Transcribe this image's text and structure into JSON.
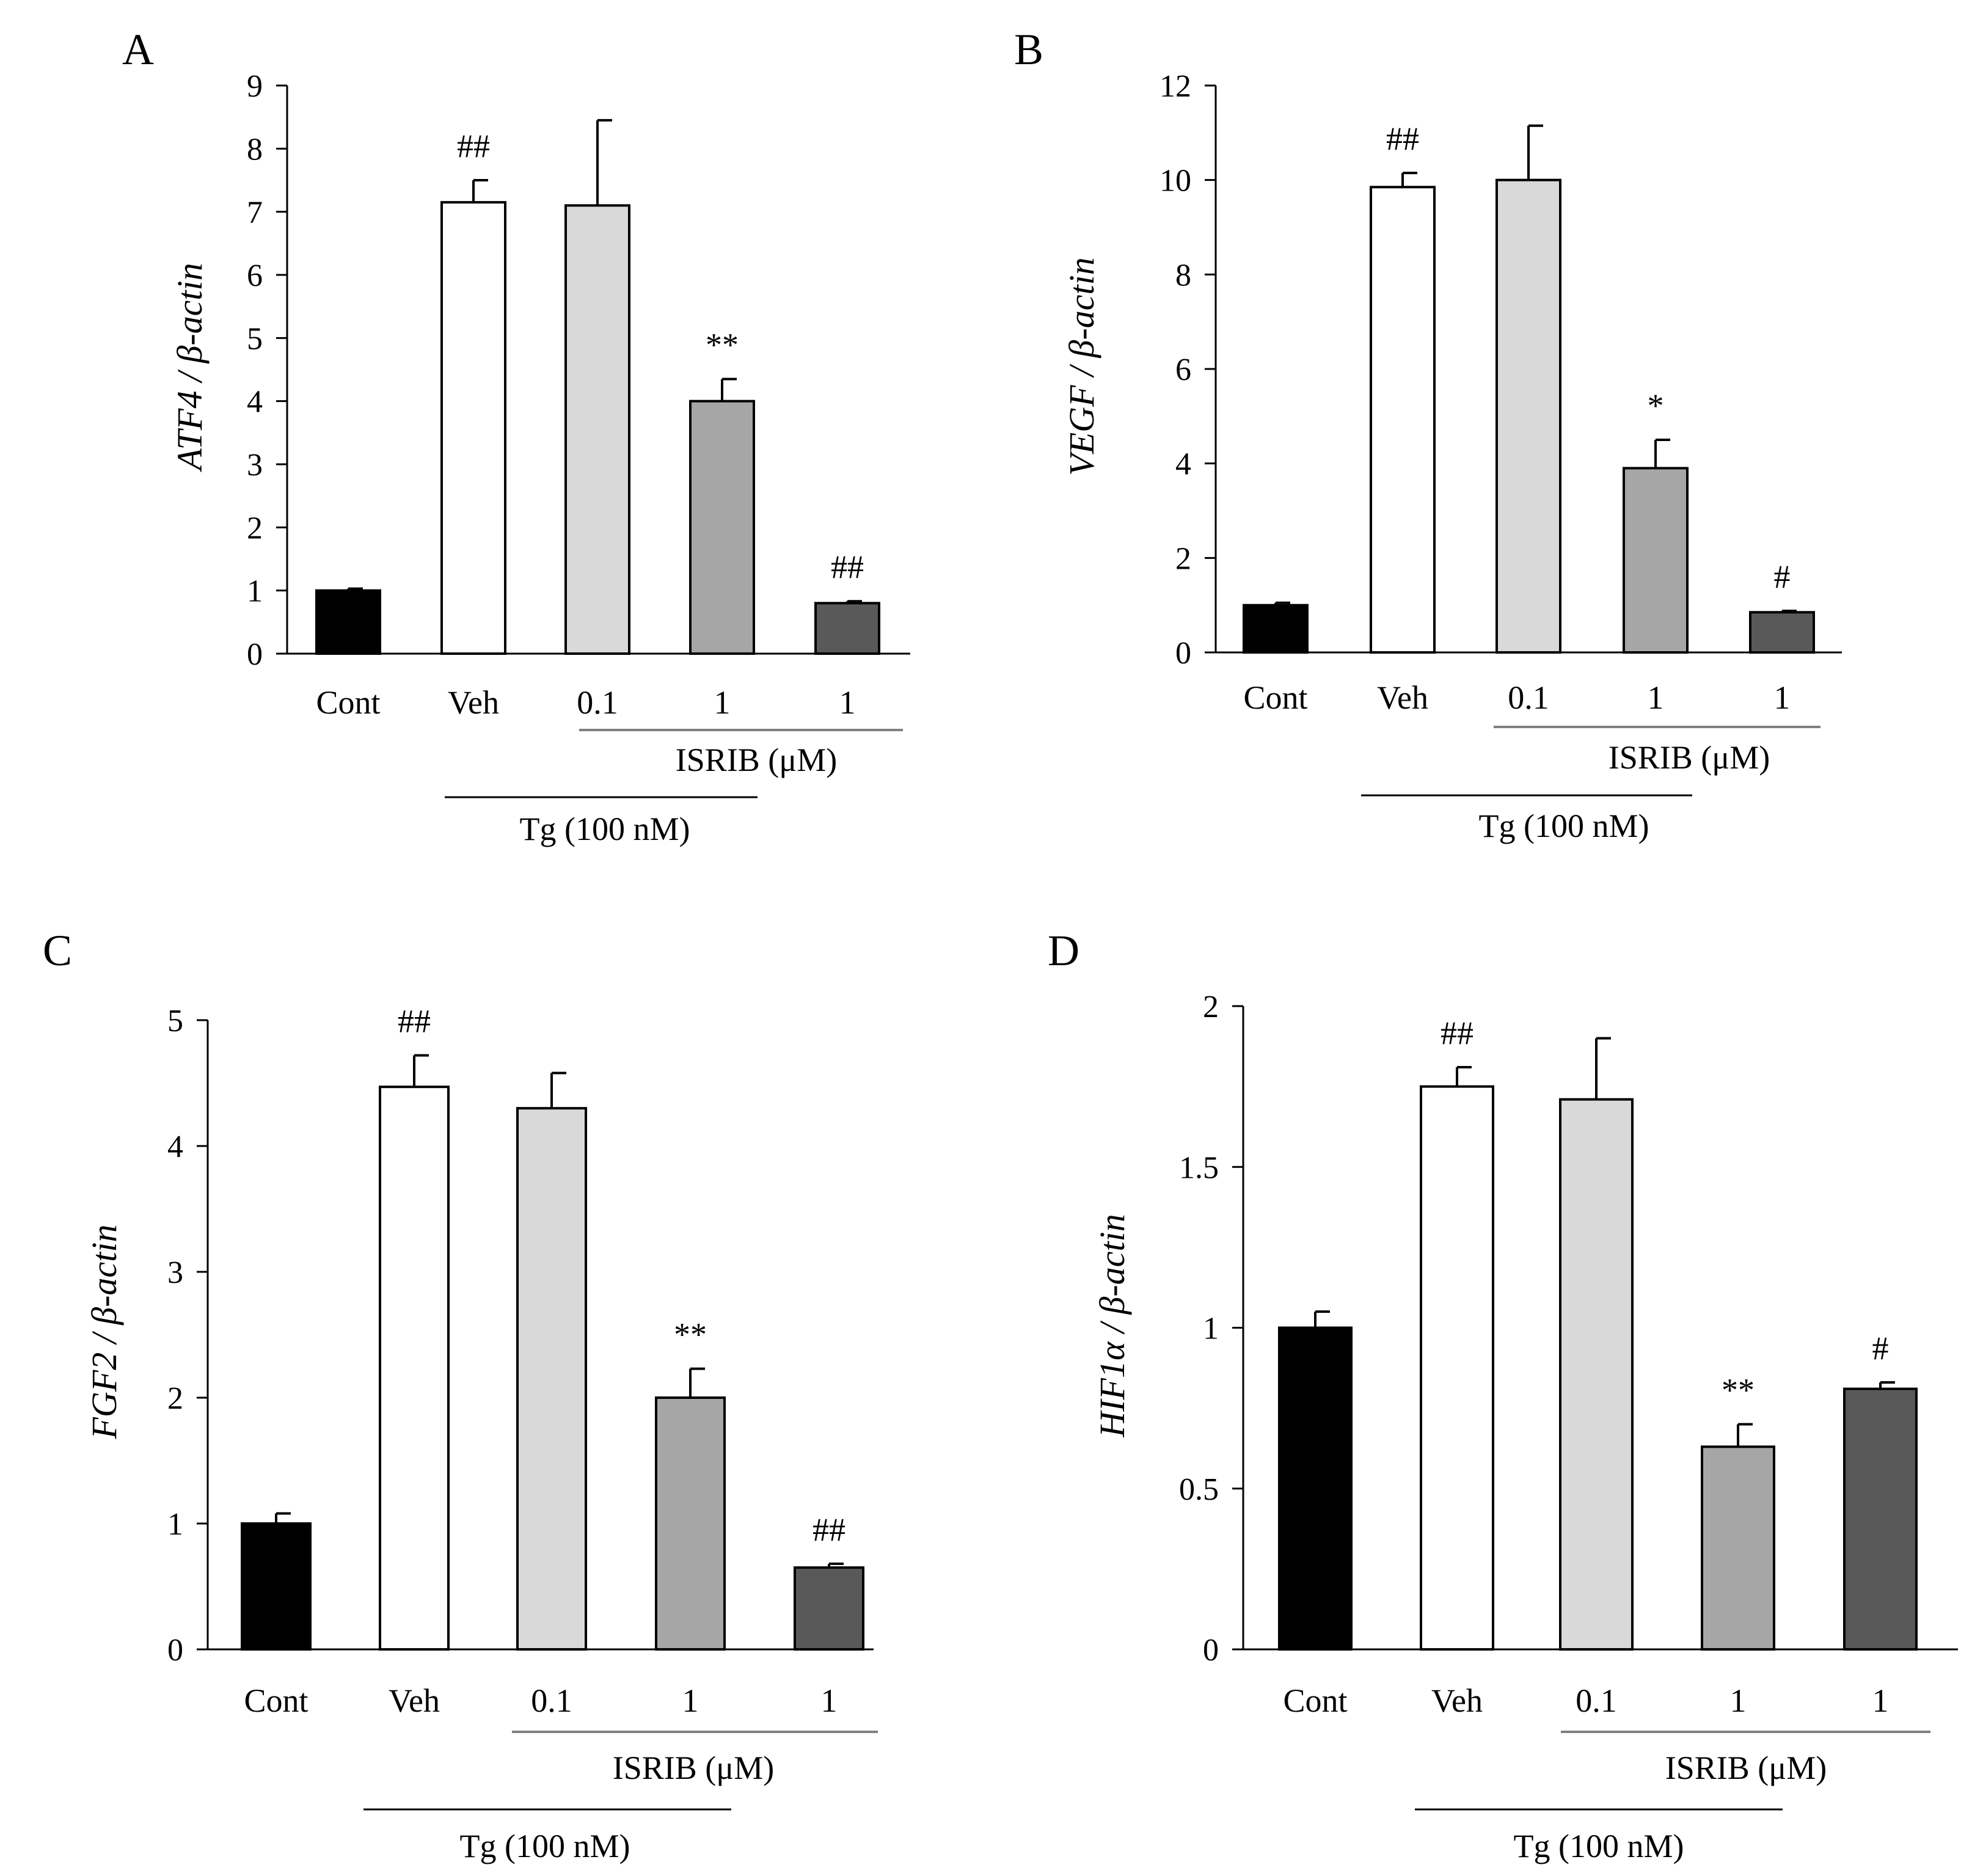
{
  "chart_data": [
    {
      "panel": "A",
      "type": "bar",
      "ylabel": "ATF4 / β-actin",
      "ylim": [
        0,
        9
      ],
      "yticks": [
        "0",
        "1",
        "2",
        "3",
        "4",
        "5",
        "6",
        "7",
        "8",
        "9"
      ],
      "tick_values": [
        0,
        1,
        2,
        3,
        4,
        5,
        6,
        7,
        8,
        9
      ],
      "categories": [
        "Cont",
        "Veh",
        "0.1",
        "1",
        "1"
      ],
      "values": [
        1.0,
        7.15,
        7.1,
        4.0,
        0.8
      ],
      "errors": [
        0.03,
        0.35,
        1.35,
        0.35,
        0.03
      ],
      "annotations": [
        "",
        "##",
        "",
        "**",
        "##"
      ],
      "bar_colors": [
        "#000000",
        "#ffffff",
        "#d9d9d9",
        "#a6a6a6",
        "#595959"
      ],
      "isrib_label": "ISRIB (μM)",
      "tg_label": "Tg  (100 nM)"
    },
    {
      "panel": "B",
      "type": "bar",
      "ylabel": "VEGF / β-actin",
      "ylim": [
        0,
        12
      ],
      "yticks": [
        "0",
        "2",
        "4",
        "6",
        "8",
        "10",
        "12"
      ],
      "tick_values": [
        0,
        2,
        4,
        6,
        8,
        10,
        12
      ],
      "categories": [
        "Cont",
        "Veh",
        "0.1",
        "1",
        "1"
      ],
      "values": [
        1.0,
        9.85,
        10.0,
        3.9,
        0.85
      ],
      "errors": [
        0.05,
        0.3,
        1.15,
        0.6,
        0.03
      ],
      "annotations": [
        "",
        "##",
        "",
        "*",
        "#"
      ],
      "bar_colors": [
        "#000000",
        "#ffffff",
        "#d9d9d9",
        "#a6a6a6",
        "#595959"
      ],
      "isrib_label": "ISRIB (μM)",
      "tg_label": "Tg  (100 nM)"
    },
    {
      "panel": "C",
      "type": "bar",
      "ylabel": "FGF2 / β-actin",
      "ylim": [
        0,
        5
      ],
      "yticks": [
        "0",
        "1",
        "2",
        "3",
        "4",
        "5"
      ],
      "tick_values": [
        0,
        1,
        2,
        3,
        4,
        5
      ],
      "categories": [
        "Cont",
        "Veh",
        "0.1",
        "1",
        "1"
      ],
      "values": [
        1.0,
        4.47,
        4.3,
        2.0,
        0.65
      ],
      "errors": [
        0.08,
        0.25,
        0.28,
        0.23,
        0.03
      ],
      "annotations": [
        "",
        "##",
        "",
        "**",
        "##"
      ],
      "bar_colors": [
        "#000000",
        "#ffffff",
        "#d9d9d9",
        "#a6a6a6",
        "#595959"
      ],
      "isrib_label": "ISRIB (μM)",
      "tg_label": "Tg  (100 nM)"
    },
    {
      "panel": "D",
      "type": "bar",
      "ylabel": "HIF1α / β-actin",
      "ylim": [
        0,
        2
      ],
      "yticks": [
        "0",
        "0.5",
        "1",
        "1.5",
        "2"
      ],
      "tick_values": [
        0,
        0.5,
        1,
        1.5,
        2
      ],
      "categories": [
        "Cont",
        "Veh",
        "0.1",
        "1",
        "1"
      ],
      "values": [
        1.0,
        1.75,
        1.71,
        0.63,
        0.81
      ],
      "errors": [
        0.05,
        0.06,
        0.19,
        0.07,
        0.02
      ],
      "annotations": [
        "",
        "##",
        "",
        "**",
        "#"
      ],
      "bar_colors": [
        "#000000",
        "#ffffff",
        "#d9d9d9",
        "#a6a6a6",
        "#595959"
      ],
      "isrib_label": "ISRIB (μM)",
      "tg_label": "Tg  (100 nM)"
    }
  ]
}
